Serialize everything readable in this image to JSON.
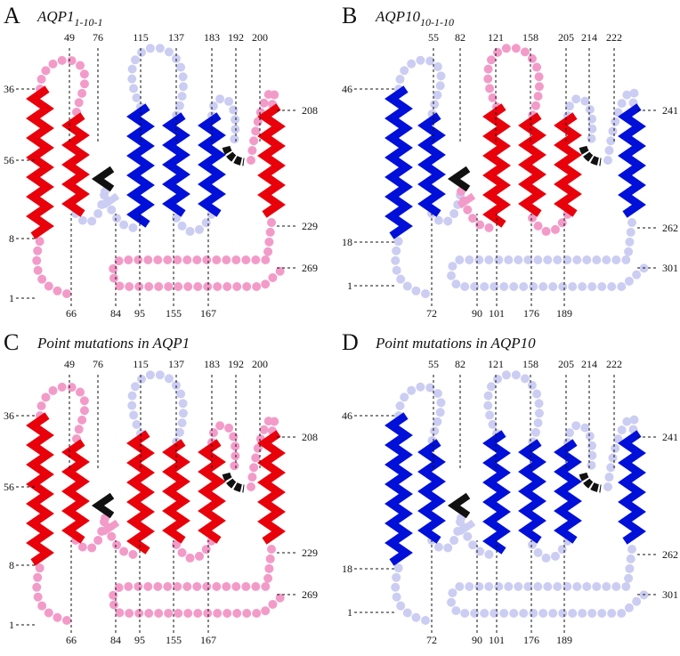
{
  "panels": [
    {
      "letter": "A",
      "title": "AQP1",
      "title_subscript": "1-10-1",
      "top_labels": [
        49,
        76,
        115,
        137,
        183,
        192,
        200
      ],
      "left_labels": [
        36,
        56,
        8,
        1
      ],
      "right_labels": [
        208,
        229,
        269
      ],
      "bottom_labels": [
        66,
        84,
        95,
        155,
        167
      ]
    },
    {
      "letter": "B",
      "title": "AQP10",
      "title_subscript": "10-1-10",
      "top_labels": [
        55,
        82,
        121,
        158,
        205,
        214,
        222
      ],
      "left_labels": [
        46,
        18,
        1
      ],
      "right_labels": [
        241,
        262,
        301
      ],
      "bottom_labels": [
        72,
        90,
        101,
        176,
        189
      ]
    },
    {
      "letter": "C",
      "title": "Point mutations in AQP1",
      "top_labels": [
        49,
        76,
        115,
        137,
        183,
        192,
        200
      ],
      "left_labels": [
        36,
        56,
        8,
        1
      ],
      "right_labels": [
        208,
        229,
        269
      ],
      "bottom_labels": [
        66,
        84,
        95,
        155,
        167
      ]
    },
    {
      "letter": "D",
      "title": "Point mutations in AQP10",
      "top_labels": [
        55,
        82,
        121,
        158,
        205,
        214,
        222
      ],
      "left_labels": [
        46,
        18,
        1
      ],
      "right_labels": [
        241,
        262,
        301
      ],
      "bottom_labels": [
        72,
        90,
        101,
        176,
        189
      ]
    }
  ]
}
